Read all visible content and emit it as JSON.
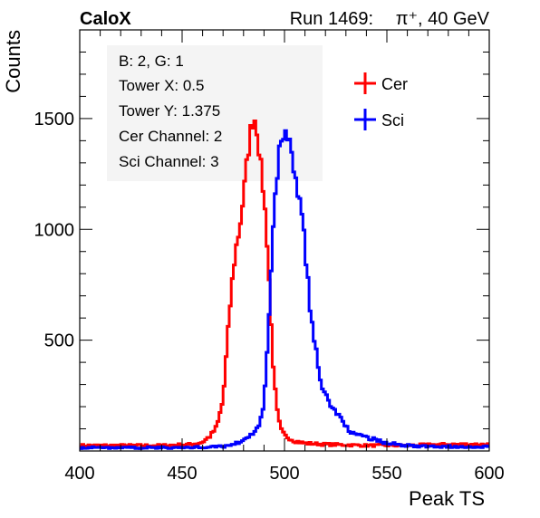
{
  "header": {
    "brand": "CaloX",
    "run_label": "Run 1469:",
    "particle": "π⁺, 40 GeV"
  },
  "info_box": {
    "lines": [
      "B: 2, G: 1",
      "Tower X: 0.5",
      "Tower Y: 1.375",
      "Cer Channel: 2",
      "Sci Channel: 3"
    ]
  },
  "colors": {
    "cer": "#ff0000",
    "sci": "#0000ff",
    "axis": "#000000"
  },
  "chart_data": {
    "type": "line",
    "xlabel": "Peak TS",
    "ylabel": "Counts",
    "xlim": [
      400,
      600
    ],
    "ylim": [
      0,
      1900
    ],
    "xticks": [
      400,
      450,
      500,
      550,
      600
    ],
    "yticks": [
      500,
      1000,
      1500
    ],
    "legend": "top-right",
    "series": [
      {
        "name": "Cer",
        "color": "#ff0000",
        "x": [
          400,
          420,
          440,
          455,
          460,
          464,
          467,
          470,
          472,
          474,
          476,
          478,
          480,
          482,
          484,
          485,
          486,
          487,
          488,
          490,
          492,
          494,
          496,
          498,
          500,
          505,
          510,
          520,
          540,
          560,
          580,
          600
        ],
        "y": [
          25,
          25,
          25,
          30,
          40,
          70,
          110,
          230,
          480,
          720,
          900,
          1000,
          1150,
          1330,
          1480,
          1505,
          1490,
          1420,
          1320,
          1150,
          880,
          460,
          200,
          100,
          70,
          45,
          35,
          30,
          25,
          25,
          30,
          30
        ]
      },
      {
        "name": "Sci",
        "color": "#0000ff",
        "x": [
          400,
          450,
          470,
          475,
          480,
          485,
          488,
          490,
          492,
          494,
          496,
          498,
          500,
          502,
          504,
          506,
          508,
          510,
          512,
          514,
          516,
          518,
          520,
          525,
          530,
          535,
          540,
          545,
          550,
          560,
          570,
          580,
          600
        ],
        "y": [
          15,
          15,
          20,
          30,
          50,
          80,
          120,
          200,
          550,
          920,
          1200,
          1400,
          1430,
          1410,
          1320,
          1210,
          1100,
          920,
          700,
          520,
          420,
          300,
          250,
          180,
          110,
          70,
          60,
          50,
          35,
          25,
          20,
          20,
          20
        ]
      }
    ]
  }
}
